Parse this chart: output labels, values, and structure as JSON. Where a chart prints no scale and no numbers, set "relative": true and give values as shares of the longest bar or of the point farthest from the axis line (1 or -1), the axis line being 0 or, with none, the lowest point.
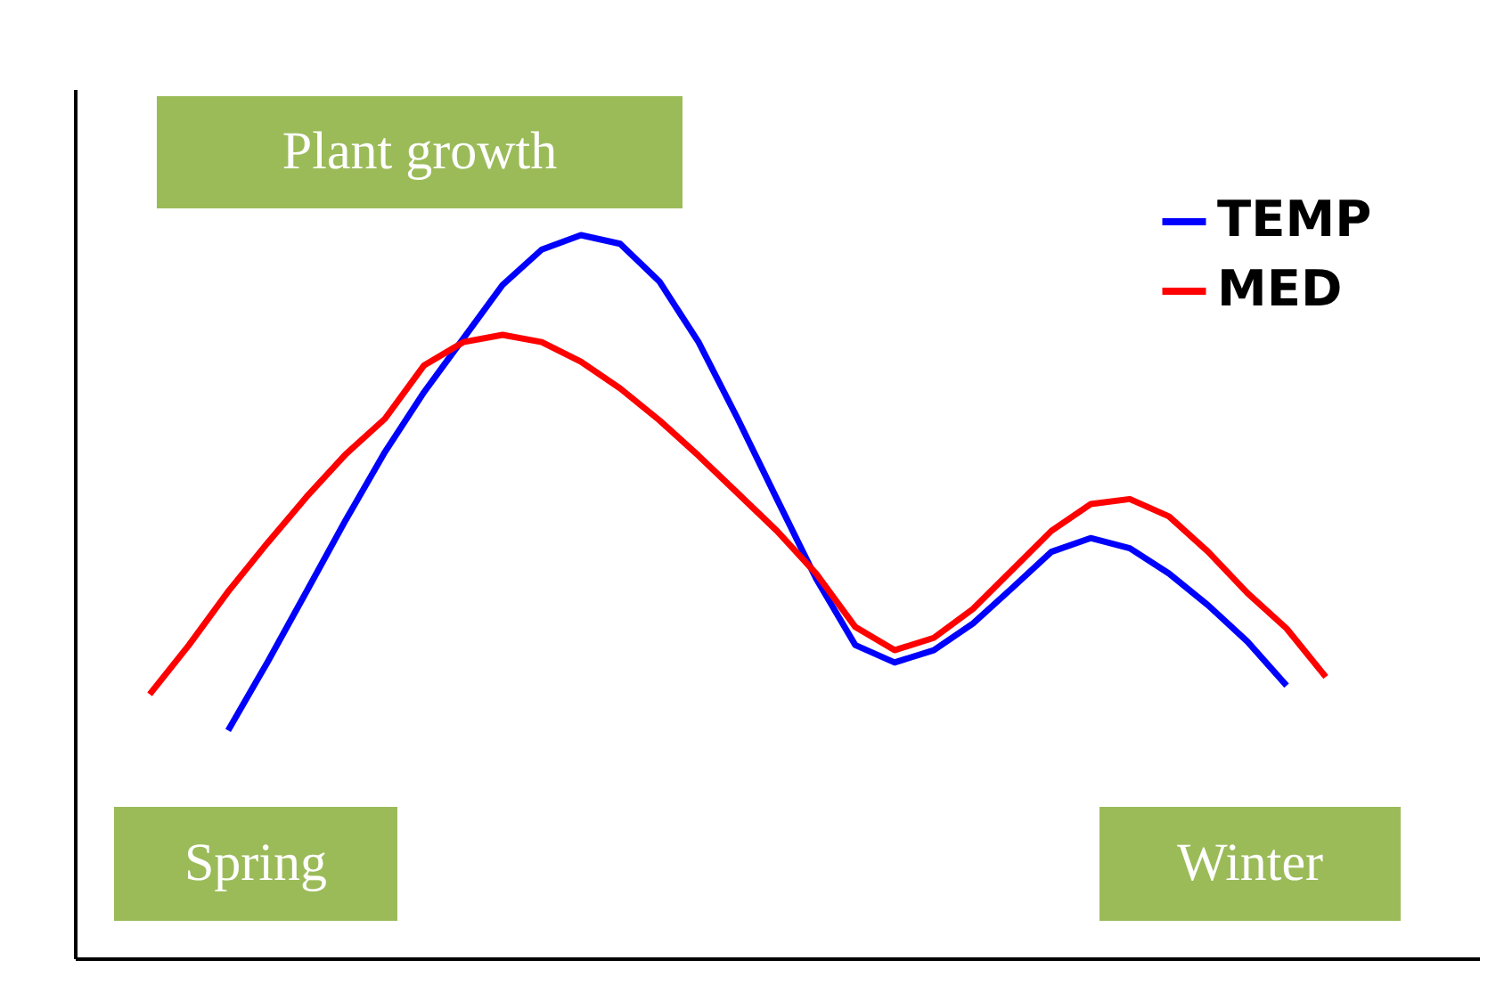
{
  "chart_data": {
    "type": "line",
    "relative": true,
    "legend": "top right",
    "line_style": "solid",
    "categories": [
      null,
      null,
      null,
      null,
      null,
      null,
      null,
      null,
      null,
      null,
      null,
      null,
      null,
      null,
      null,
      null,
      null,
      null,
      null,
      null,
      null,
      null,
      null,
      null,
      null,
      null,
      null,
      null,
      null,
      null,
      null
    ],
    "series": [
      {
        "name": "TEMP",
        "color": "#0000ff",
        "values": [
          null,
          null,
          0.315,
          0.409,
          0.507,
          0.606,
          0.7,
          0.783,
          0.857,
          0.931,
          0.98,
          1.0,
          0.988,
          0.936,
          0.852,
          0.746,
          0.635,
          0.525,
          0.433,
          0.409,
          0.426,
          0.463,
          0.512,
          0.562,
          0.581,
          0.567,
          0.532,
          0.488,
          0.438,
          0.377,
          null
        ]
      },
      {
        "name": "MED",
        "color": "#ff0000",
        "values": [
          0.365,
          0.433,
          0.507,
          0.574,
          0.638,
          0.697,
          0.746,
          0.82,
          0.852,
          0.862,
          0.852,
          0.825,
          0.788,
          0.744,
          0.695,
          0.643,
          0.591,
          0.532,
          0.458,
          0.426,
          0.443,
          0.483,
          0.537,
          0.591,
          0.628,
          0.635,
          0.611,
          0.562,
          0.505,
          0.456,
          0.389
        ]
      }
    ],
    "annotations": [
      "Plant growth",
      "Spring",
      "Winter"
    ]
  }
}
